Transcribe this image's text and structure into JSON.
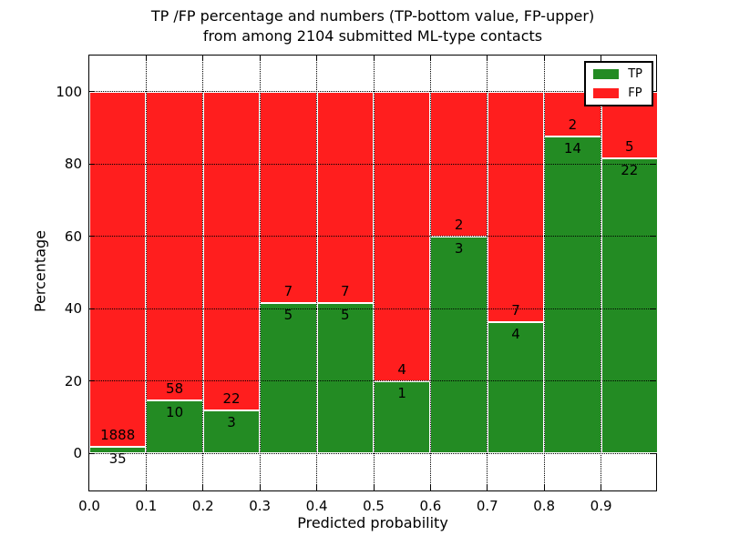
{
  "chart_data": {
    "type": "bar",
    "variant": "stacked-percentage",
    "title": "TP /FP percentage and numbers (TP-bottom value, FP-upper) from among 2104 submitted ML-type contacts",
    "title_lines": [
      "TP /FP percentage and numbers (TP-bottom value, FP-upper)",
      "from among 2104 submitted ML-type contacts"
    ],
    "xlabel": "Predicted probability",
    "ylabel": "Percentage",
    "total_submitted": 2104,
    "xlim": [
      0.0,
      1.0
    ],
    "ylim": [
      -10.7,
      110.0
    ],
    "x_tick_labels": [
      "0.0",
      "0.1",
      "0.2",
      "0.3",
      "0.4",
      "0.5",
      "0.6",
      "0.7",
      "0.8",
      "0.9"
    ],
    "y_ticks": [
      0,
      20,
      40,
      60,
      80,
      100
    ],
    "grid": {
      "style": "dotted",
      "color": "#000000",
      "above_bars": true
    },
    "bins": [
      {
        "range": [
          0.0,
          0.1
        ],
        "tp": 35,
        "fp": 1888
      },
      {
        "range": [
          0.1,
          0.2
        ],
        "tp": 10,
        "fp": 58
      },
      {
        "range": [
          0.2,
          0.3
        ],
        "tp": 3,
        "fp": 22
      },
      {
        "range": [
          0.3,
          0.4
        ],
        "tp": 5,
        "fp": 7
      },
      {
        "range": [
          0.4,
          0.5
        ],
        "tp": 5,
        "fp": 7
      },
      {
        "range": [
          0.5,
          0.6
        ],
        "tp": 1,
        "fp": 4
      },
      {
        "range": [
          0.6,
          0.7
        ],
        "tp": 3,
        "fp": 2
      },
      {
        "range": [
          0.7,
          0.8
        ],
        "tp": 4,
        "fp": 7
      },
      {
        "range": [
          0.8,
          0.9
        ],
        "tp": 14,
        "fp": 2
      },
      {
        "range": [
          0.9,
          1.0
        ],
        "tp": 22,
        "fp": 5
      }
    ],
    "legend": {
      "position": "upper-right",
      "entries": [
        {
          "label": "TP",
          "color": "#238b23"
        },
        {
          "label": "FP",
          "color": "#ff1e1e"
        }
      ]
    },
    "colors": {
      "tp": "#238b23",
      "fp": "#ff1e1e",
      "bar_edge": "#ffffff",
      "text": "#000000",
      "background": "#ffffff"
    }
  }
}
